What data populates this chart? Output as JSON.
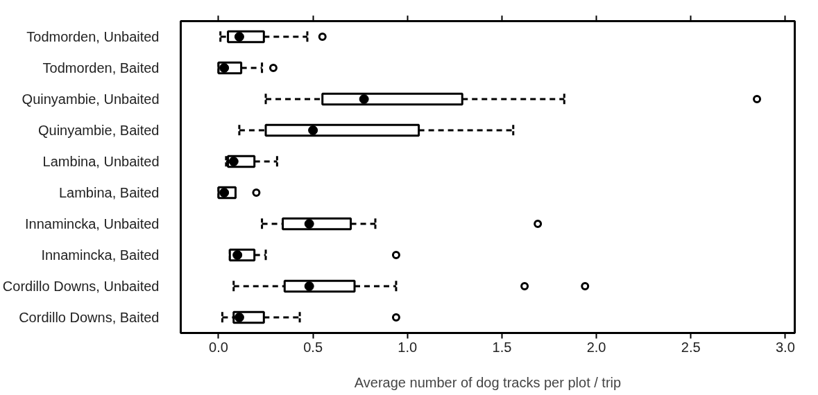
{
  "chart_data": {
    "type": "box",
    "orientation": "horizontal",
    "xlabel": "Average number of dog tracks per plot / trip",
    "categories": [
      "Todmorden, Unbaited",
      "Todmorden, Baited",
      "Quinyambie, Unbaited",
      "Quinyambie, Baited",
      "Lambina, Unbaited",
      "Lambina, Baited",
      "Innamincka, Unbaited",
      "Innamincka, Baited",
      "Cordillo Downs, Unbaited",
      "Cordillo Downs, Baited"
    ],
    "boxes": [
      {
        "low": 0.01,
        "q1": 0.05,
        "median": 0.11,
        "q3": 0.24,
        "high": 0.47,
        "outliers": [
          0.55
        ]
      },
      {
        "low": 0.0,
        "q1": 0.0,
        "median": 0.03,
        "q3": 0.12,
        "high": 0.23,
        "outliers": [
          0.29
        ]
      },
      {
        "low": 0.25,
        "q1": 0.55,
        "median": 0.77,
        "q3": 1.29,
        "high": 1.83,
        "outliers": [
          2.85
        ]
      },
      {
        "low": 0.11,
        "q1": 0.25,
        "median": 0.5,
        "q3": 1.06,
        "high": 1.56
      },
      {
        "low": 0.04,
        "q1": 0.05,
        "median": 0.08,
        "q3": 0.19,
        "high": 0.31
      },
      {
        "low": 0.0,
        "q1": 0.0,
        "median": 0.03,
        "q3": 0.09,
        "high": 0.09,
        "outliers": [
          0.2
        ]
      },
      {
        "low": 0.23,
        "q1": 0.34,
        "median": 0.48,
        "q3": 0.7,
        "high": 0.83,
        "outliers": [
          1.69
        ]
      },
      {
        "low": 0.06,
        "q1": 0.06,
        "median": 0.1,
        "q3": 0.19,
        "high": 0.25,
        "outliers": [
          0.94
        ]
      },
      {
        "low": 0.08,
        "q1": 0.35,
        "median": 0.48,
        "q3": 0.72,
        "high": 0.94,
        "outliers": [
          1.62,
          1.94
        ]
      },
      {
        "low": 0.02,
        "q1": 0.08,
        "median": 0.11,
        "q3": 0.24,
        "high": 0.43,
        "outliers": [
          0.94
        ]
      }
    ],
    "xlim": [
      -0.2,
      3.05
    ],
    "xticks": [
      {
        "value": 0.0,
        "label": "0.0"
      },
      {
        "value": 0.5,
        "label": "0.5"
      },
      {
        "value": 1.0,
        "label": "1.0"
      },
      {
        "value": 1.5,
        "label": "1.5"
      },
      {
        "value": 2.0,
        "label": "2.0"
      },
      {
        "value": 2.5,
        "label": "2.5"
      },
      {
        "value": 3.0,
        "label": "3.0"
      }
    ],
    "grid": false
  }
}
